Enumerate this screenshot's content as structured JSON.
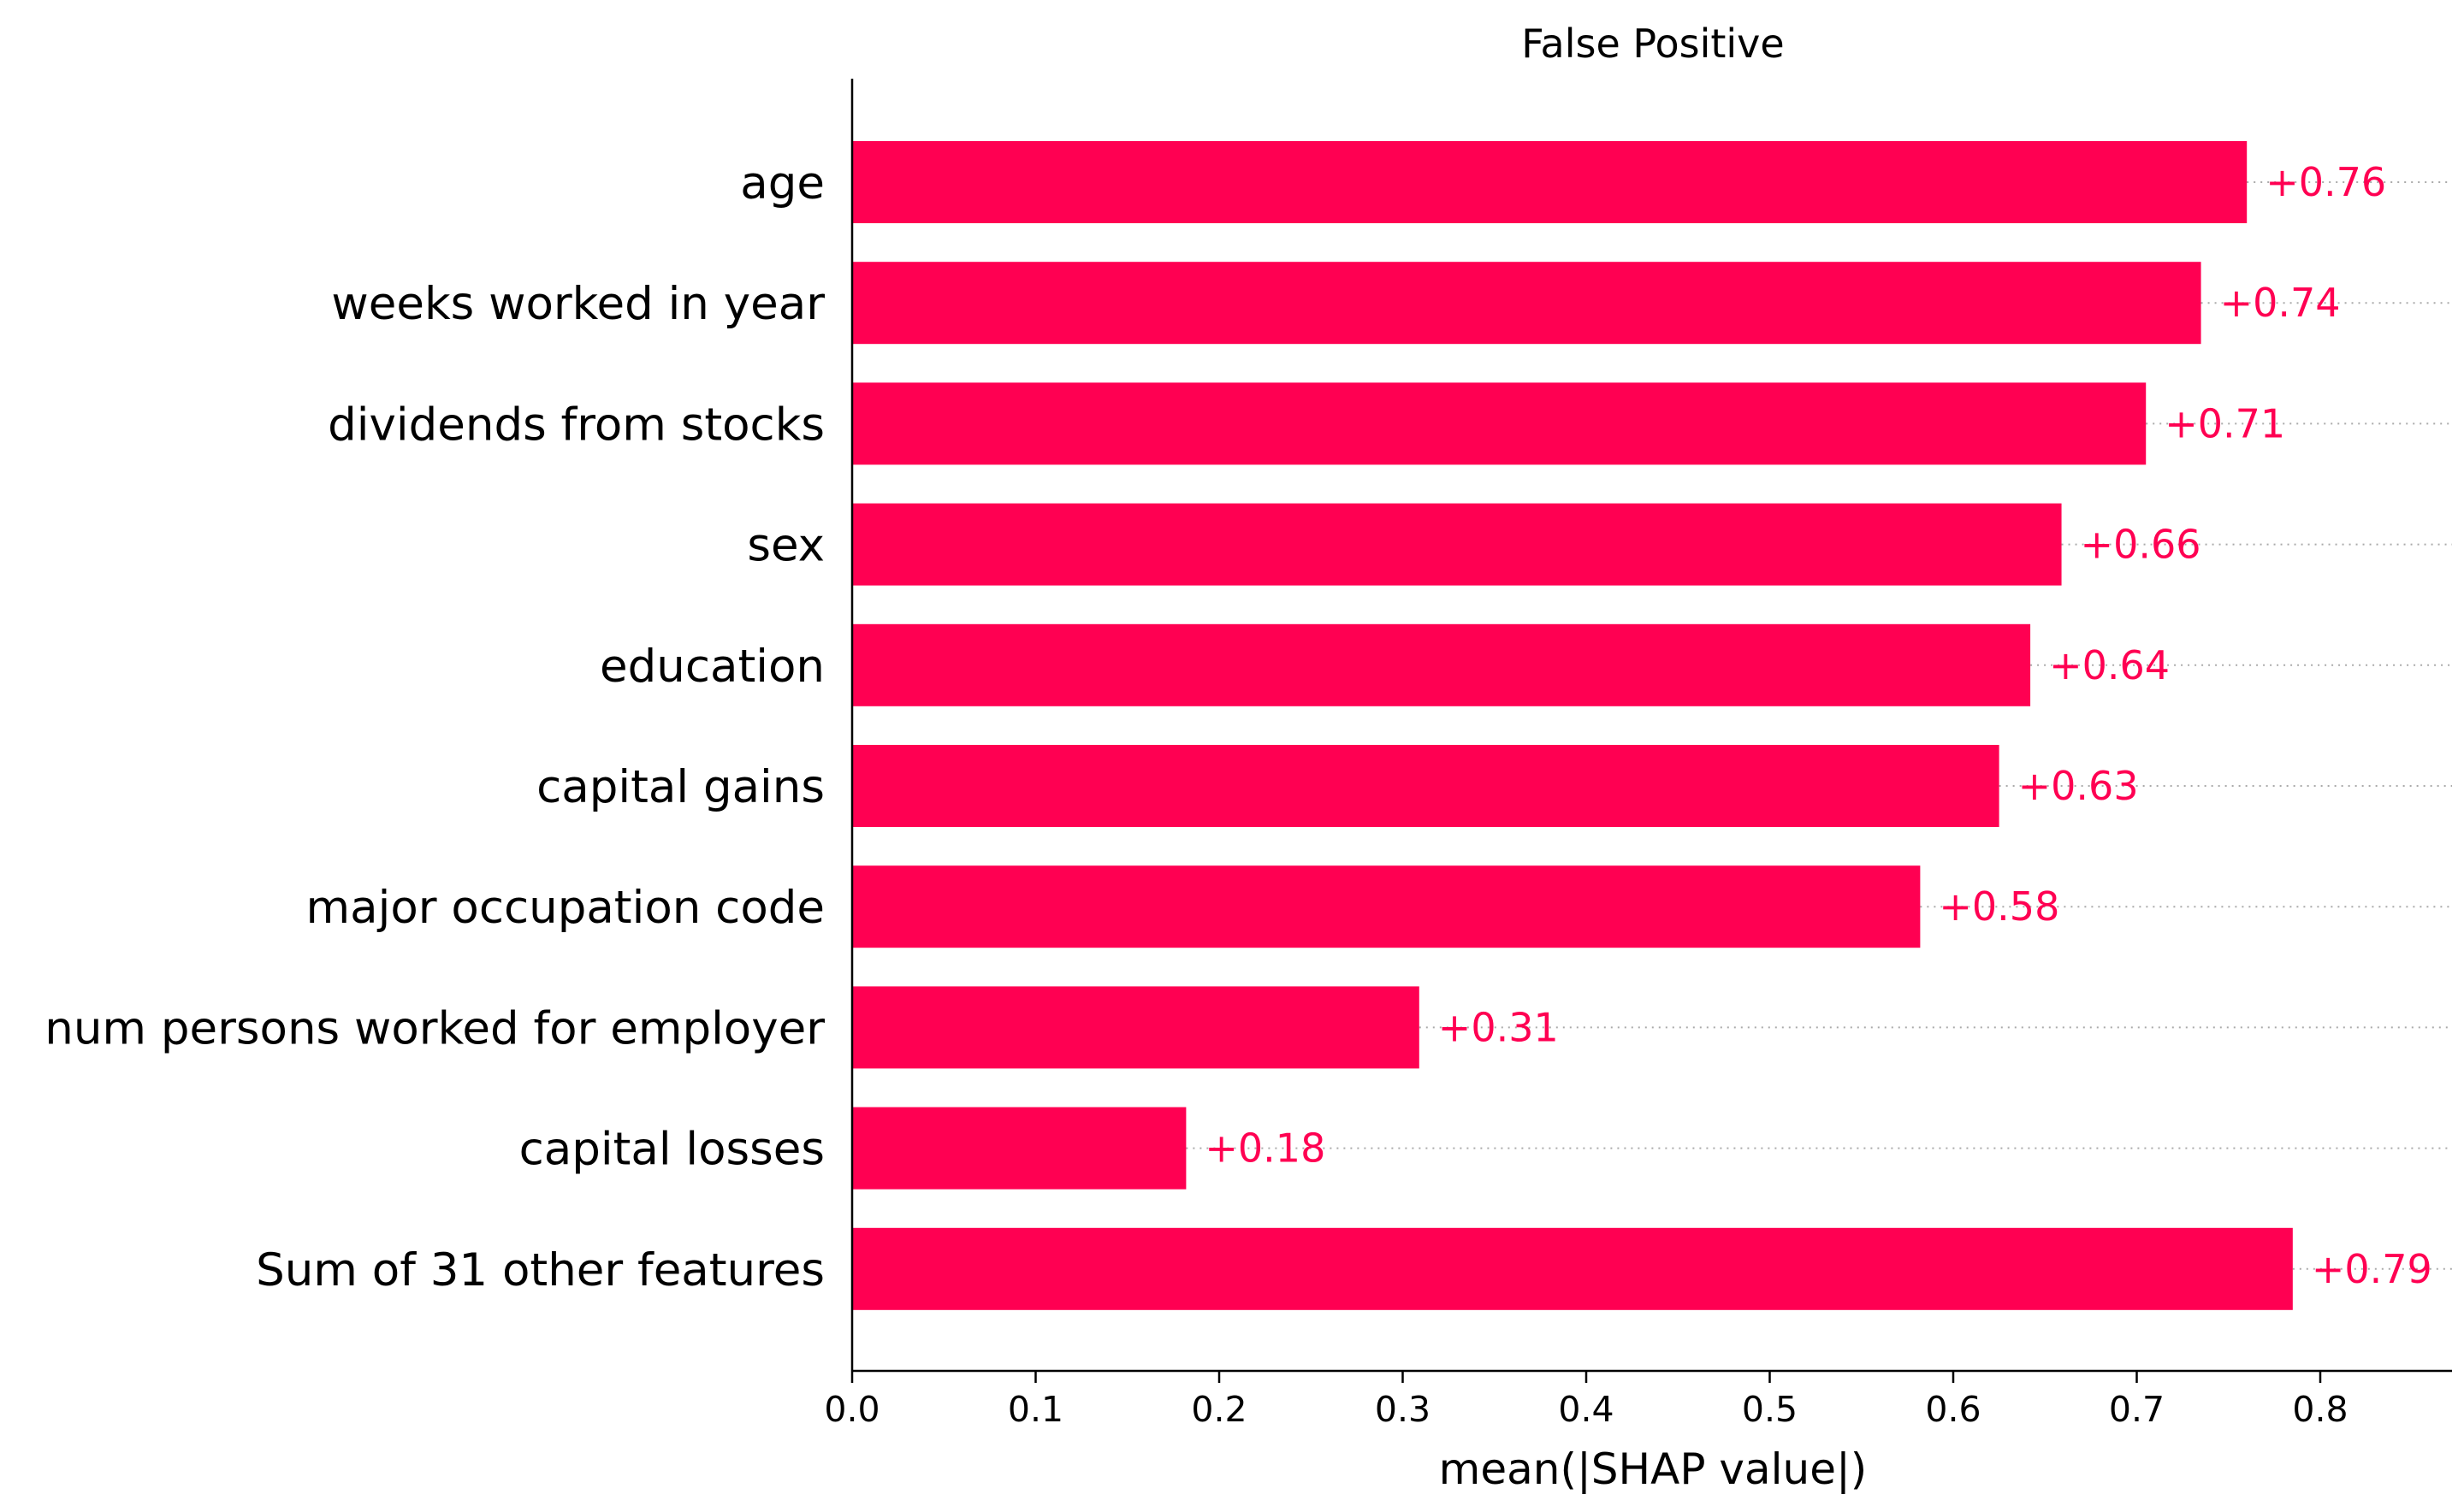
{
  "chart_data": {
    "type": "bar",
    "orientation": "horizontal",
    "title": "False Positive",
    "xlabel": "mean(|SHAP value|)",
    "ylabel": "",
    "xlim": [
      0,
      0.87
    ],
    "xticks": [
      "0.0",
      "0.1",
      "0.2",
      "0.3",
      "0.4",
      "0.5",
      "0.6",
      "0.7",
      "0.8"
    ],
    "bar_color": "#ff0052",
    "label_color": "#ff0052",
    "categories": [
      "age",
      "weeks worked in year",
      "dividends from stocks",
      "sex",
      "education",
      "capital gains",
      "major occupation code",
      "num persons worked for employer",
      "capital losses",
      "Sum of 31 other features"
    ],
    "values": [
      0.76,
      0.735,
      0.705,
      0.659,
      0.642,
      0.625,
      0.582,
      0.309,
      0.182,
      0.785
    ],
    "value_labels": [
      "+0.76",
      "+0.74",
      "+0.71",
      "+0.66",
      "+0.64",
      "+0.63",
      "+0.58",
      "+0.31",
      "+0.18",
      "+0.79"
    ]
  }
}
